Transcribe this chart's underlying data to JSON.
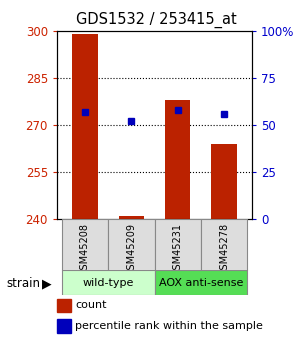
{
  "title": "GDS1532 / 253415_at",
  "samples": [
    "GSM45208",
    "GSM45209",
    "GSM45231",
    "GSM45278"
  ],
  "count_values": [
    299,
    241,
    278,
    264
  ],
  "percentile_values": [
    57,
    52,
    58,
    56
  ],
  "ylim_left": [
    240,
    300
  ],
  "ylim_right": [
    0,
    100
  ],
  "yticks_left": [
    240,
    255,
    270,
    285,
    300
  ],
  "yticks_right": [
    0,
    25,
    50,
    75,
    100
  ],
  "ytick_labels_right": [
    "0",
    "25",
    "50",
    "75",
    "100%"
  ],
  "bar_color": "#bb2200",
  "dot_color": "#0000bb",
  "wt_color_light": "#ccffcc",
  "aox_color_dark": "#55dd55",
  "sample_box_color": "#dddddd",
  "bar_width": 0.55,
  "x_positions": [
    0,
    1,
    2,
    3
  ]
}
